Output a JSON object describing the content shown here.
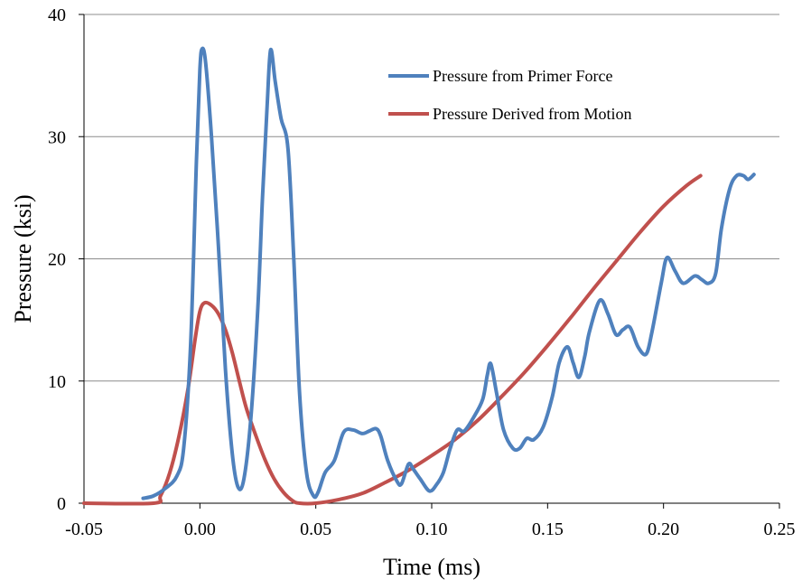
{
  "chart_data": {
    "type": "line",
    "title": "",
    "xlabel": "Time (ms)",
    "ylabel": "Pressure (ksi)",
    "xlim": [
      -0.05,
      0.25
    ],
    "ylim": [
      0,
      40
    ],
    "x_ticks": [
      "-0.05",
      "0.00",
      "0.05",
      "0.10",
      "0.15",
      "0.20",
      "0.25"
    ],
    "y_ticks": [
      "0",
      "10",
      "20",
      "30",
      "40"
    ],
    "grid": "horizontal",
    "legend_position": "top-right",
    "series": [
      {
        "name": "Pressure from Primer Force",
        "color": "#4F81BD",
        "points": [
          [
            -0.0245,
            0.4
          ],
          [
            -0.02,
            0.6
          ],
          [
            -0.015,
            1.2
          ],
          [
            -0.01,
            2.2
          ],
          [
            -0.007,
            4.5
          ],
          [
            -0.004,
            13.0
          ],
          [
            -0.0015,
            28.0
          ],
          [
            0.0,
            35.5
          ],
          [
            0.001,
            37.2
          ],
          [
            0.0025,
            36.0
          ],
          [
            0.005,
            30.0
          ],
          [
            0.008,
            21.0
          ],
          [
            0.011,
            11.0
          ],
          [
            0.014,
            4.0
          ],
          [
            0.0165,
            1.3
          ],
          [
            0.019,
            2.0
          ],
          [
            0.022,
            7.0
          ],
          [
            0.025,
            16.0
          ],
          [
            0.027,
            25.0
          ],
          [
            0.029,
            32.5
          ],
          [
            0.0305,
            37.1
          ],
          [
            0.0325,
            34.5
          ],
          [
            0.035,
            31.5
          ],
          [
            0.038,
            29.0
          ],
          [
            0.0405,
            20.0
          ],
          [
            0.043,
            9.0
          ],
          [
            0.046,
            2.5
          ],
          [
            0.049,
            0.6
          ],
          [
            0.051,
            0.9
          ],
          [
            0.054,
            2.5
          ],
          [
            0.058,
            3.5
          ],
          [
            0.062,
            5.8
          ],
          [
            0.066,
            6.0
          ],
          [
            0.07,
            5.7
          ],
          [
            0.073,
            5.9
          ],
          [
            0.076,
            6.1
          ],
          [
            0.078,
            5.5
          ],
          [
            0.081,
            3.5
          ],
          [
            0.085,
            1.8
          ],
          [
            0.087,
            1.6
          ],
          [
            0.09,
            3.2
          ],
          [
            0.092,
            2.8
          ],
          [
            0.095,
            2.0
          ],
          [
            0.099,
            1.0
          ],
          [
            0.102,
            1.5
          ],
          [
            0.105,
            2.5
          ],
          [
            0.108,
            4.5
          ],
          [
            0.111,
            6.0
          ],
          [
            0.114,
            5.9
          ],
          [
            0.118,
            7.0
          ],
          [
            0.122,
            8.5
          ],
          [
            0.124,
            10.5
          ],
          [
            0.1255,
            11.4
          ],
          [
            0.128,
            9.0
          ],
          [
            0.131,
            6.0
          ],
          [
            0.135,
            4.5
          ],
          [
            0.138,
            4.5
          ],
          [
            0.141,
            5.3
          ],
          [
            0.144,
            5.2
          ],
          [
            0.148,
            6.2
          ],
          [
            0.152,
            8.7
          ],
          [
            0.155,
            11.5
          ],
          [
            0.1585,
            12.8
          ],
          [
            0.161,
            11.5
          ],
          [
            0.1635,
            10.3
          ],
          [
            0.166,
            12.0
          ],
          [
            0.168,
            14.0
          ],
          [
            0.1725,
            16.6
          ],
          [
            0.176,
            15.5
          ],
          [
            0.1795,
            13.8
          ],
          [
            0.1825,
            14.2
          ],
          [
            0.1855,
            14.4
          ],
          [
            0.189,
            12.8
          ],
          [
            0.1925,
            12.2
          ],
          [
            0.195,
            14.0
          ],
          [
            0.199,
            18.0
          ],
          [
            0.2015,
            20.1
          ],
          [
            0.205,
            19.0
          ],
          [
            0.2085,
            18.0
          ],
          [
            0.2135,
            18.6
          ],
          [
            0.2165,
            18.3
          ],
          [
            0.2195,
            18.0
          ],
          [
            0.2225,
            18.8
          ],
          [
            0.225,
            22.5
          ],
          [
            0.2285,
            25.7
          ],
          [
            0.2315,
            26.8
          ],
          [
            0.2345,
            26.8
          ],
          [
            0.2365,
            26.5
          ],
          [
            0.239,
            26.9
          ]
        ]
      },
      {
        "name": "Pressure Derived from Motion",
        "color": "#C0504D",
        "points": [
          [
            -0.05,
            0.0
          ],
          [
            -0.02,
            0.0
          ],
          [
            -0.017,
            0.6
          ],
          [
            -0.013,
            2.5
          ],
          [
            -0.009,
            5.5
          ],
          [
            -0.005,
            9.5
          ],
          [
            -0.002,
            13.5
          ],
          [
            0.0,
            15.7
          ],
          [
            0.002,
            16.4
          ],
          [
            0.005,
            16.2
          ],
          [
            0.008,
            15.5
          ],
          [
            0.011,
            14.2
          ],
          [
            0.014,
            12.3
          ],
          [
            0.017,
            10.0
          ],
          [
            0.02,
            7.8
          ],
          [
            0.024,
            5.6
          ],
          [
            0.028,
            3.6
          ],
          [
            0.032,
            2.0
          ],
          [
            0.036,
            0.9
          ],
          [
            0.04,
            0.2
          ],
          [
            0.043,
            0.0
          ],
          [
            0.05,
            0.0
          ],
          [
            0.06,
            0.3
          ],
          [
            0.07,
            0.8
          ],
          [
            0.08,
            1.7
          ],
          [
            0.09,
            2.7
          ],
          [
            0.1,
            3.9
          ],
          [
            0.11,
            5.2
          ],
          [
            0.12,
            6.8
          ],
          [
            0.13,
            8.7
          ],
          [
            0.14,
            10.7
          ],
          [
            0.15,
            12.9
          ],
          [
            0.16,
            15.2
          ],
          [
            0.17,
            17.6
          ],
          [
            0.18,
            19.9
          ],
          [
            0.19,
            22.2
          ],
          [
            0.2,
            24.3
          ],
          [
            0.21,
            26.0
          ],
          [
            0.216,
            26.8
          ]
        ]
      }
    ]
  }
}
